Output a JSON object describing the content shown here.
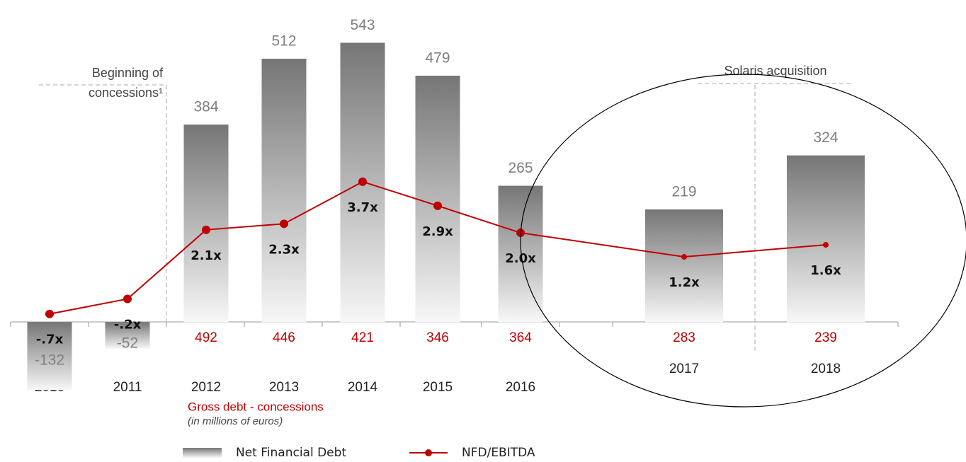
{
  "chart_data": {
    "type": "bar",
    "categories": [
      "2010",
      "2011",
      "2012",
      "2013",
      "2014",
      "2015",
      "2016",
      "2017",
      "2018"
    ],
    "series": [
      {
        "name": "Net Financial Debt",
        "type": "bar",
        "color": "#7a7a7a",
        "values": [
          -132,
          -52,
          384,
          512,
          543,
          479,
          265,
          219,
          324
        ]
      },
      {
        "name": "NFD/EBITDA",
        "type": "line",
        "axis": "y2",
        "color": "#c00000",
        "values": [
          -0.7,
          -0.2,
          2.1,
          2.3,
          3.7,
          2.9,
          2.0,
          1.2,
          1.6
        ],
        "value_labels": [
          "-.7x",
          "-.2x",
          "2.1x",
          "2.3x",
          "3.7x",
          "2.9x",
          "2.0x",
          "1.2x",
          "1.6x"
        ]
      }
    ],
    "gross_debt": {
      "label": "Gross debt - concessions",
      "unit_note": "(in millions of euros)",
      "color": "#c00000",
      "values": [
        null,
        null,
        492,
        446,
        421,
        346,
        364,
        283,
        239
      ]
    },
    "annotations": {
      "concessions": [
        "Beginning of",
        "concessions¹"
      ],
      "solaris": "Solaris acquisition"
    },
    "ylim": [
      -250,
      600
    ],
    "y2lim": [
      -5.25,
      9.3
    ]
  }
}
